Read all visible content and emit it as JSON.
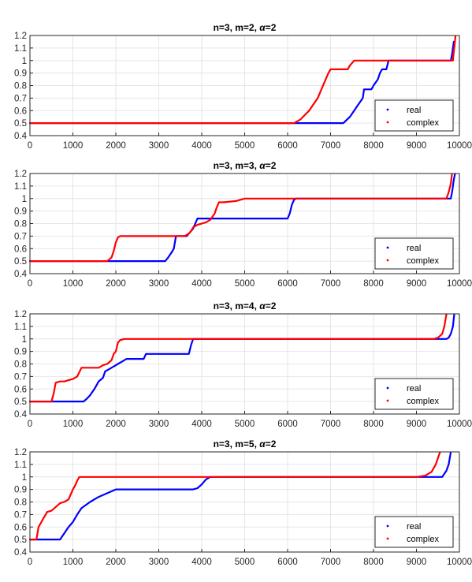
{
  "colors": {
    "real": "#0000ff",
    "complex": "#ff0000",
    "grid": "#e6e6e6",
    "axis": "#262626"
  },
  "chart_data": [
    {
      "type": "line",
      "title_parts": [
        "n=3, m=2, ",
        "α",
        "=2"
      ],
      "xlim": [
        0,
        10000
      ],
      "ylim": [
        0.4,
        1.2
      ],
      "xticks": [
        "0",
        "1000",
        "2000",
        "3000",
        "4000",
        "5000",
        "6000",
        "7000",
        "8000",
        "9000",
        "10000"
      ],
      "yticks": [
        "0.4",
        "0.5",
        "0.6",
        "0.7",
        "0.8",
        "0.9",
        "1",
        "1.1",
        "1.2"
      ],
      "grid": true,
      "legend_position": "bottom-right",
      "series": [
        {
          "name": "real",
          "color": "#0000ff",
          "x": [
            0,
            7300,
            7450,
            7550,
            7650,
            7750,
            7780,
            7950,
            8000,
            8100,
            8150,
            8200,
            8300,
            8350,
            8400,
            9800,
            9830,
            9850,
            9870
          ],
          "y": [
            0.5,
            0.5,
            0.55,
            0.6,
            0.65,
            0.7,
            0.77,
            0.77,
            0.8,
            0.85,
            0.9,
            0.93,
            0.93,
            1.0,
            1.0,
            1.0,
            1.05,
            1.1,
            1.15
          ]
        },
        {
          "name": "complex",
          "color": "#ff0000",
          "x": [
            0,
            6150,
            6300,
            6500,
            6700,
            6850,
            6950,
            7000,
            7400,
            7450,
            7500,
            7550,
            7600,
            9850,
            9870,
            9890,
            9910
          ],
          "y": [
            0.5,
            0.5,
            0.53,
            0.6,
            0.7,
            0.82,
            0.9,
            0.93,
            0.93,
            0.96,
            0.98,
            1.0,
            1.0,
            1.0,
            1.07,
            1.13,
            1.2
          ]
        }
      ]
    },
    {
      "type": "line",
      "title_parts": [
        "n=3, m=3, ",
        "α",
        "=2"
      ],
      "xlim": [
        0,
        10000
      ],
      "ylim": [
        0.4,
        1.2
      ],
      "xticks": [
        "0",
        "1000",
        "2000",
        "3000",
        "4000",
        "5000",
        "6000",
        "7000",
        "8000",
        "9000",
        "10000"
      ],
      "yticks": [
        "0.4",
        "0.5",
        "0.6",
        "0.7",
        "0.8",
        "0.9",
        "1",
        "1.1",
        "1.2"
      ],
      "grid": true,
      "legend_position": "bottom-right",
      "series": [
        {
          "name": "real",
          "color": "#0000ff",
          "x": [
            0,
            3150,
            3220,
            3300,
            3350,
            3400,
            3650,
            3700,
            3800,
            3850,
            3900,
            3950,
            4000,
            4050,
            4100,
            4300,
            6000,
            6050,
            6100,
            6150,
            6200,
            9800,
            9830,
            9850,
            9870,
            9900
          ],
          "y": [
            0.5,
            0.5,
            0.53,
            0.57,
            0.6,
            0.7,
            0.7,
            0.72,
            0.76,
            0.8,
            0.84,
            0.84,
            0.84,
            0.84,
            0.84,
            0.84,
            0.84,
            0.88,
            0.95,
            0.99,
            1.0,
            1.0,
            1.05,
            1.1,
            1.15,
            1.2
          ]
        },
        {
          "name": "complex",
          "color": "#ff0000",
          "x": [
            0,
            1800,
            1900,
            1950,
            2000,
            2050,
            2100,
            3600,
            3700,
            3750,
            3800,
            3900,
            4000,
            4100,
            4200,
            4300,
            4350,
            4400,
            4450,
            4500,
            4800,
            4900,
            5000,
            5100,
            9700,
            9750,
            9800,
            9830
          ],
          "y": [
            0.5,
            0.5,
            0.53,
            0.58,
            0.65,
            0.69,
            0.7,
            0.7,
            0.72,
            0.74,
            0.77,
            0.79,
            0.8,
            0.81,
            0.83,
            0.88,
            0.93,
            0.97,
            0.97,
            0.97,
            0.98,
            0.99,
            1.0,
            1.0,
            1.0,
            1.05,
            1.12,
            1.2
          ]
        }
      ]
    },
    {
      "type": "line",
      "title_parts": [
        "n=3, m=4, ",
        "α",
        "=2"
      ],
      "xlim": [
        0,
        10000
      ],
      "ylim": [
        0.4,
        1.2
      ],
      "xticks": [
        "0",
        "1000",
        "2000",
        "3000",
        "4000",
        "5000",
        "6000",
        "7000",
        "8000",
        "9000",
        "10000"
      ],
      "yticks": [
        "0.4",
        "0.5",
        "0.6",
        "0.7",
        "0.8",
        "0.9",
        "1",
        "1.1",
        "1.2"
      ],
      "grid": true,
      "legend_position": "bottom-right",
      "series": [
        {
          "name": "real",
          "color": "#0000ff",
          "x": [
            0,
            1250,
            1320,
            1400,
            1500,
            1600,
            1700,
            1750,
            1850,
            1950,
            2050,
            2150,
            2250,
            2650,
            2700,
            3700,
            3750,
            3800,
            9700,
            9750,
            9800,
            9850,
            9880
          ],
          "y": [
            0.5,
            0.5,
            0.52,
            0.55,
            0.6,
            0.66,
            0.69,
            0.74,
            0.76,
            0.78,
            0.8,
            0.82,
            0.84,
            0.84,
            0.88,
            0.88,
            0.95,
            1.0,
            1.0,
            1.01,
            1.04,
            1.1,
            1.2
          ]
        },
        {
          "name": "complex",
          "color": "#ff0000",
          "x": [
            0,
            500,
            550,
            600,
            700,
            800,
            900,
            1000,
            1100,
            1200,
            1600,
            1700,
            1800,
            1900,
            1950,
            2000,
            2050,
            2100,
            2200,
            9400,
            9500,
            9600,
            9650,
            9700
          ],
          "y": [
            0.5,
            0.5,
            0.56,
            0.65,
            0.66,
            0.66,
            0.67,
            0.68,
            0.7,
            0.77,
            0.77,
            0.79,
            0.8,
            0.83,
            0.88,
            0.9,
            0.97,
            0.99,
            1.0,
            1.0,
            1.01,
            1.04,
            1.1,
            1.2
          ]
        }
      ]
    },
    {
      "type": "line",
      "title_parts": [
        "n=3, m=5, ",
        "α",
        "=2"
      ],
      "xlim": [
        0,
        10000
      ],
      "ylim": [
        0.4,
        1.2
      ],
      "xticks": [
        "0",
        "1000",
        "2000",
        "3000",
        "4000",
        "5000",
        "6000",
        "7000",
        "8000",
        "9000",
        "10000"
      ],
      "yticks": [
        "0.4",
        "0.5",
        "0.6",
        "0.7",
        "0.8",
        "0.9",
        "1",
        "1.1",
        "1.2"
      ],
      "grid": true,
      "legend_position": "bottom-right",
      "series": [
        {
          "name": "real",
          "color": "#0000ff",
          "x": [
            0,
            700,
            800,
            900,
            1000,
            1100,
            1200,
            1400,
            1600,
            1800,
            2000,
            2200,
            3800,
            3900,
            4000,
            4100,
            4200,
            9600,
            9700,
            9750,
            9800
          ],
          "y": [
            0.5,
            0.5,
            0.55,
            0.6,
            0.64,
            0.7,
            0.75,
            0.8,
            0.84,
            0.87,
            0.9,
            0.9,
            0.9,
            0.91,
            0.94,
            0.98,
            1.0,
            1.0,
            1.05,
            1.1,
            1.2
          ]
        },
        {
          "name": "complex",
          "color": "#ff0000",
          "x": [
            0,
            150,
            200,
            250,
            300,
            400,
            500,
            600,
            700,
            800,
            900,
            1000,
            1050,
            1100,
            1150,
            9000,
            9200,
            9350,
            9450,
            9500,
            9550
          ],
          "y": [
            0.5,
            0.5,
            0.6,
            0.63,
            0.66,
            0.72,
            0.73,
            0.76,
            0.79,
            0.8,
            0.82,
            0.9,
            0.93,
            0.97,
            1.0,
            1.0,
            1.01,
            1.04,
            1.1,
            1.15,
            1.2
          ]
        }
      ]
    }
  ]
}
